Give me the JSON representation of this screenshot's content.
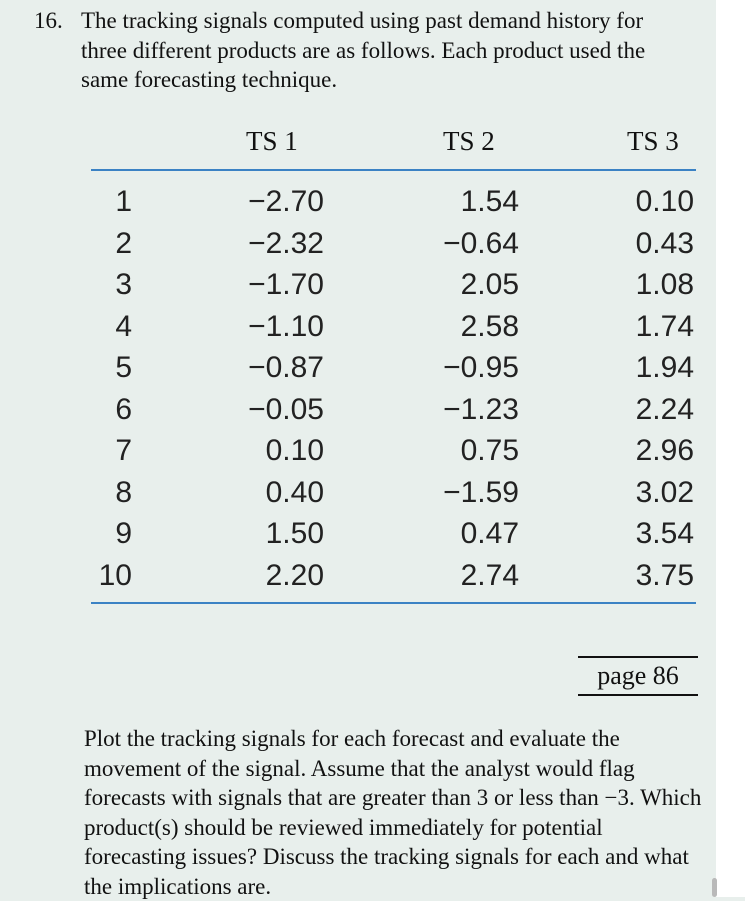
{
  "question": {
    "number": "16.",
    "text": "The tracking signals computed using past demand history for three different products are as follows. Each product used the same forecasting technique."
  },
  "table": {
    "headers": [
      "TS 1",
      "TS 2",
      "TS 3"
    ],
    "rows": [
      {
        "period": "1",
        "ts1": "−2.70",
        "ts2": "1.54",
        "ts3": "0.10"
      },
      {
        "period": "2",
        "ts1": "−2.32",
        "ts2": "−0.64",
        "ts3": "0.43"
      },
      {
        "period": "3",
        "ts1": "−1.70",
        "ts2": "2.05",
        "ts3": "1.08"
      },
      {
        "period": "4",
        "ts1": "−1.10",
        "ts2": "2.58",
        "ts3": "1.74"
      },
      {
        "period": "5",
        "ts1": "−0.87",
        "ts2": "−0.95",
        "ts3": "1.94"
      },
      {
        "period": "6",
        "ts1": "−0.05",
        "ts2": "−1.23",
        "ts3": "2.24"
      },
      {
        "period": "7",
        "ts1": "0.10",
        "ts2": "0.75",
        "ts3": "2.96"
      },
      {
        "period": "8",
        "ts1": "0.40",
        "ts2": "−1.59",
        "ts3": "3.02"
      },
      {
        "period": "9",
        "ts1": "1.50",
        "ts2": "0.47",
        "ts3": "3.54"
      },
      {
        "period": "10",
        "ts1": "2.20",
        "ts2": "2.74",
        "ts3": "3.75"
      }
    ]
  },
  "page_ref": "page 86",
  "instructions": "Plot the tracking signals for each forecast and evaluate the movement of the signal. Assume that the analyst would flag forecasts with signals that are greater than 3 or less than −3. Which product(s) should be reviewed immediately for potential forecasting issues? Discuss the tracking signals for each and what the implications are."
}
